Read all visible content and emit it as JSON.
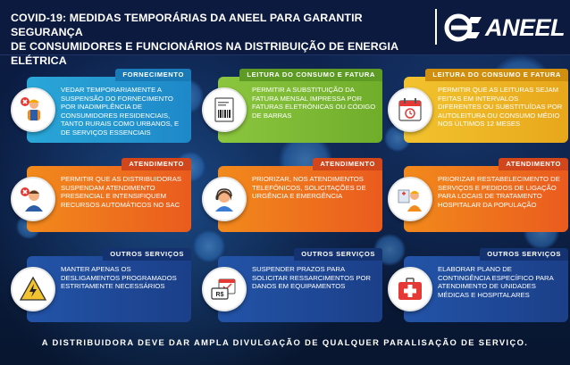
{
  "header": {
    "title_line1": "COVID-19: MEDIDAS TEMPORÁRIAS DA ANEEL PARA GARANTIR SEGURANÇA",
    "title_line2": "DE CONSUMIDORES E FUNCIONÁRIOS NA DISTRIBUIÇÃO DE ENERGIA ELÉTRICA",
    "logo_text": "ANEEL"
  },
  "colors": {
    "background": "#0b1a3e",
    "blue": "#2aa7d8",
    "green": "#8cc63f",
    "yellow": "#f2c32e",
    "orange": "#f28a1c",
    "navy": "#2354a8"
  },
  "cards": [
    {
      "tag": "FORNECIMENTO",
      "text": "VEDAR TEMPORARIAMENTE A SUSPENSÃO DO FORNECIMENTO POR INADIMPLÊNCIA DE CONSUMIDORES RESIDENCIAIS, TANTO RURAIS COMO URBANOS, E DE SERVIÇOS ESSENCIAIS",
      "icon": "worker-blocked-icon"
    },
    {
      "tag": "LEITURA DO CONSUMO E FATURA",
      "text": "PERMITIR A SUBSTITUIÇÃO DA FATURA MENSAL IMPRESSA POR FATURAS ELETRÔNICAS OU CÓDIGO DE BARRAS",
      "icon": "barcode-invoice-icon"
    },
    {
      "tag": "LEITURA DO CONSUMO E FATURA",
      "text": "PERMITIR QUE AS LEITURAS SEJAM FEITAS EM INTERVALOS DIFERENTES OU SUBSTITUÍDAS POR AUTOLEITURA OU CONSUMO MÉDIO NOS ÚLTIMOS 12 MESES",
      "icon": "calendar-icon"
    },
    {
      "tag": "ATENDIMENTO",
      "text": "PERMITIR QUE AS DISTRIBUIDORAS SUSPENDAM ATENDIMENTO PRESENCIAL E INTENSIFIQUEM RECURSOS AUTOMÁTICOS NO SAC",
      "icon": "person-blocked-icon"
    },
    {
      "tag": "ATENDIMENTO",
      "text": "PRIORIZAR, NOS ATENDIMENTOS TELEFÔNICOS, SOLICITAÇÕES DE URGÊNCIA E EMERGÊNCIA",
      "icon": "call-center-icon"
    },
    {
      "tag": "ATENDIMENTO",
      "text": "PRIORIZAR RESTABELECIMENTO DE SERVIÇOS E PEDIDOS DE LIGAÇÃO PARA LOCAIS DE TRATAMENTO HOSPITALAR DA POPULAÇÃO",
      "icon": "hospital-worker-icon"
    },
    {
      "tag": "OUTROS SERVIÇOS",
      "text": "MANTER APENAS OS DESLIGAMENTOS PROGRAMADOS ESTRITAMENTE NECESSÁRIOS",
      "icon": "high-voltage-icon"
    },
    {
      "tag": "OUTROS SERVIÇOS",
      "text": "SUSPENDER PRAZOS PARA SOLICITAR RESSARCIMENTOS POR DANOS EM EQUIPAMENTOS",
      "icon": "money-calendar-icon",
      "badge": "R$"
    },
    {
      "tag": "OUTROS SERVIÇOS",
      "text": "ELABORAR PLANO DE CONTINGÊNCIA ESPECÍFICO PARA ATENDIMENTO DE UNIDADES MÉDICAS E HOSPITALARES",
      "icon": "medical-kit-icon"
    }
  ],
  "footer": "A DISTRIBUIDORA DEVE DAR AMPLA DIVULGAÇÃO DE QUALQUER PARALISAÇÃO DE SERVIÇO."
}
